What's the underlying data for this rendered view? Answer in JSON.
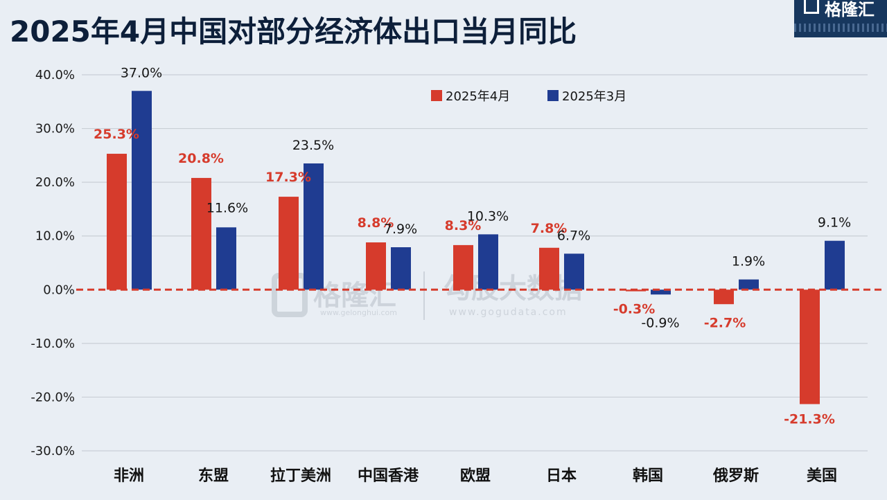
{
  "title": "2025年4月中国对部分经济体出口当月同比",
  "logo": {
    "text": "格隆汇"
  },
  "watermark": {
    "brand1": "格隆汇",
    "url1": "www.gelonghui.com",
    "brand2": "勾股大数据",
    "url2": "www.gogudata.com"
  },
  "colors": {
    "series_a": "#d63b2c",
    "series_b": "#1f3c91",
    "zero_line": "#d63b2c",
    "grid": "#c9cfd6"
  },
  "chart_data": {
    "type": "bar",
    "title": "2025年4月中国对部分经济体出口当月同比",
    "categories": [
      "非洲",
      "东盟",
      "拉丁美洲",
      "中国香港",
      "欧盟",
      "日本",
      "韩国",
      "俄罗斯",
      "美国"
    ],
    "series": [
      {
        "name": "2025年4月",
        "values": [
          25.3,
          20.8,
          17.3,
          8.8,
          8.3,
          7.8,
          -0.3,
          -2.7,
          -21.3
        ],
        "labels": [
          "25.3%",
          "20.8%",
          "17.3%",
          "8.8%",
          "8.3%",
          "7.8%",
          "-0.3%",
          "-2.7%",
          "-21.3%"
        ]
      },
      {
        "name": "2025年3月",
        "values": [
          37.0,
          11.6,
          23.5,
          7.9,
          10.3,
          6.7,
          -0.9,
          1.9,
          9.1
        ],
        "labels": [
          "37.0%",
          "11.6%",
          "23.5%",
          "7.9%",
          "10.3%",
          "6.7%",
          "-0.9%",
          "1.9%",
          "9.1%"
        ]
      }
    ],
    "yticks": [
      "40.0%",
      "30.0%",
      "20.0%",
      "10.0%",
      "0.0%",
      "-10.0%",
      "-20.0%",
      "-30.0%"
    ],
    "ytick_values": [
      40,
      30,
      20,
      10,
      0,
      -10,
      -20,
      -30
    ],
    "ylim": [
      -30,
      40
    ],
    "grid": true,
    "legend_position": "top-center"
  }
}
